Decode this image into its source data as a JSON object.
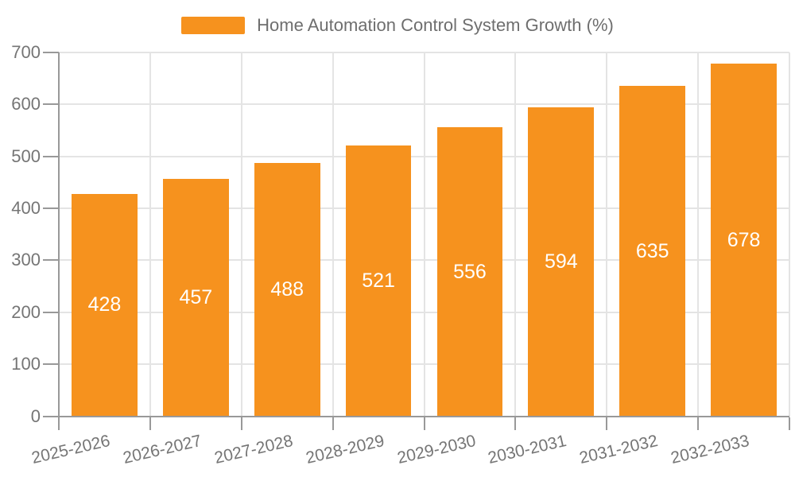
{
  "legend": {
    "position": "top-center"
  },
  "chart_data": {
    "type": "bar",
    "title": "Home Automation Control System Growth (%)",
    "categories": [
      "2025-2026",
      "2026-2027",
      "2027-2028",
      "2028-2029",
      "2029-2030",
      "2030-2031",
      "2031-2032",
      "2032-2033"
    ],
    "values": [
      428,
      457,
      488,
      521,
      556,
      594,
      635,
      678
    ],
    "series": [
      {
        "name": "Home Automation Control System Growth (%)",
        "values": [
          428,
          457,
          488,
          521,
          556,
          594,
          635,
          678
        ]
      }
    ],
    "xlabel": "",
    "ylabel": "",
    "ylim": [
      0,
      700
    ],
    "ytick_interval": 100,
    "ytick_labels": [
      "0",
      "100",
      "200",
      "300",
      "400",
      "500",
      "600",
      "700"
    ],
    "grid": true,
    "legend_position": "top",
    "bar_color": "#F6921E",
    "value_label_color": "#FFFFFF",
    "axis_color": "#999999",
    "gridline_color": "#E4E4E4",
    "tick_label_color": "#757575",
    "legend_text_color": "#6E6E6E",
    "background_color": "#FFFFFF",
    "x_tick_label_rotation_deg": -13
  }
}
